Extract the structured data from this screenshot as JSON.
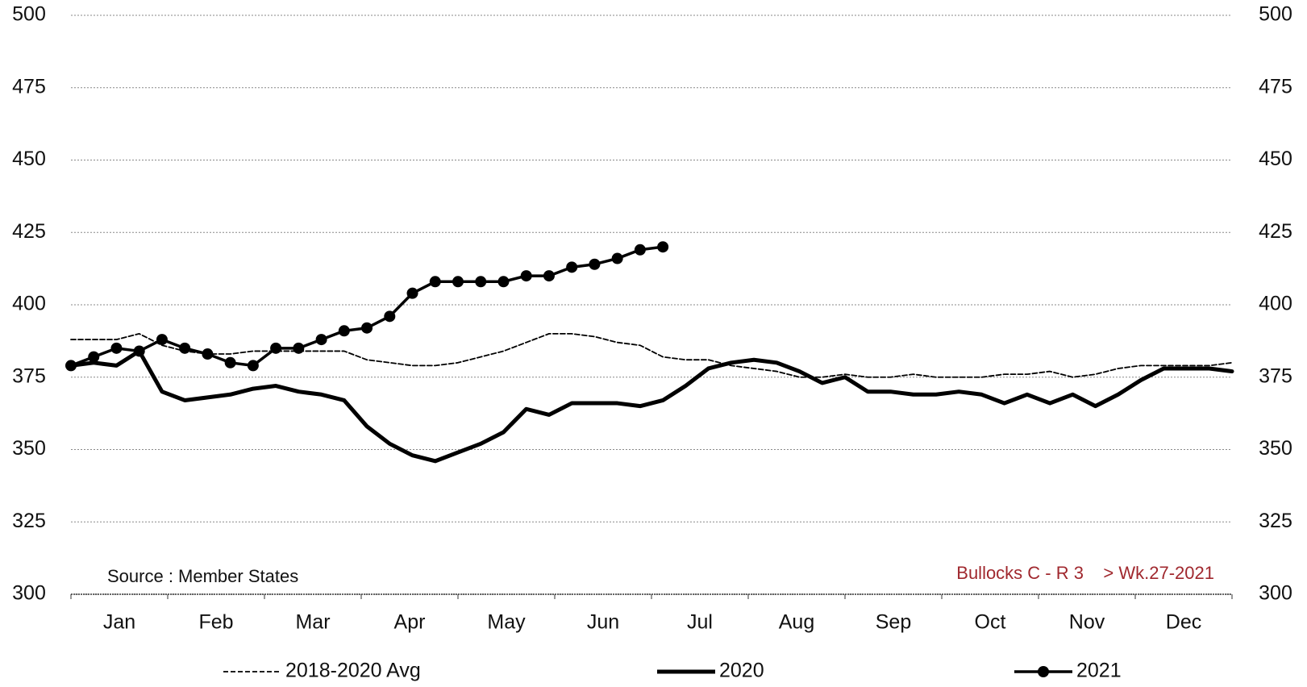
{
  "chart_data": {
    "type": "line",
    "categories": [
      "Jan",
      "Feb",
      "Mar",
      "Apr",
      "May",
      "Jun",
      "Jul",
      "Aug",
      "Sep",
      "Oct",
      "Nov",
      "Dec"
    ],
    "xlim": [
      1,
      52
    ],
    "ylim": [
      300,
      500
    ],
    "yticks": [
      300,
      325,
      350,
      375,
      400,
      425,
      450,
      475,
      500
    ],
    "y2lim": [
      300,
      500
    ],
    "y2ticks": [
      300,
      325,
      350,
      375,
      400,
      425,
      450,
      475,
      500
    ],
    "grid": true,
    "annotations": [
      "Source : Member States",
      "Bullocks C - R 3    > Wk.27-2021"
    ],
    "series": [
      {
        "name": "2018-2020 Avg",
        "color": "#000000",
        "style": "dashed",
        "x": [
          1,
          2,
          3,
          4,
          5,
          6,
          7,
          8,
          9,
          10,
          11,
          12,
          13,
          14,
          15,
          16,
          17,
          18,
          19,
          20,
          21,
          22,
          23,
          24,
          25,
          26,
          27,
          28,
          29,
          30,
          31,
          32,
          33,
          34,
          35,
          36,
          37,
          38,
          39,
          40,
          41,
          42,
          43,
          44,
          45,
          46,
          47,
          48,
          49,
          50,
          51,
          52
        ],
        "values": [
          388,
          388,
          388,
          390,
          386,
          384,
          383,
          383,
          384,
          384,
          384,
          384,
          384,
          381,
          380,
          379,
          379,
          380,
          382,
          384,
          387,
          390,
          390,
          389,
          387,
          386,
          382,
          381,
          381,
          379,
          378,
          377,
          375,
          375,
          376,
          375,
          375,
          376,
          375,
          375,
          375,
          376,
          376,
          377,
          375,
          376,
          378,
          379,
          379,
          379,
          379,
          380
        ]
      },
      {
        "name": "2020",
        "color": "#000000",
        "style": "thick",
        "x": [
          1,
          2,
          3,
          4,
          5,
          6,
          7,
          8,
          9,
          10,
          11,
          12,
          13,
          14,
          15,
          16,
          17,
          18,
          19,
          20,
          21,
          22,
          23,
          24,
          25,
          26,
          27,
          28,
          29,
          30,
          31,
          32,
          33,
          34,
          35,
          36,
          37,
          38,
          39,
          40,
          41,
          42,
          43,
          44,
          45,
          46,
          47,
          48,
          49,
          50,
          51,
          52
        ],
        "values": [
          379,
          380,
          379,
          384,
          370,
          367,
          368,
          369,
          371,
          372,
          370,
          369,
          367,
          358,
          352,
          348,
          346,
          349,
          352,
          356,
          364,
          362,
          366,
          366,
          366,
          365,
          367,
          372,
          378,
          380,
          381,
          380,
          377,
          373,
          375,
          370,
          370,
          369,
          369,
          370,
          369,
          366,
          369,
          366,
          369,
          365,
          369,
          374,
          378,
          378,
          378,
          377
        ]
      },
      {
        "name": "2021",
        "color": "#000000",
        "style": "markers",
        "x": [
          1,
          2,
          3,
          4,
          5,
          6,
          7,
          8,
          9,
          10,
          11,
          12,
          13,
          14,
          15,
          16,
          17,
          18,
          19,
          20,
          21,
          22,
          23,
          24,
          25,
          26,
          27
        ],
        "values": [
          379,
          382,
          385,
          384,
          388,
          385,
          383,
          380,
          379,
          385,
          385,
          388,
          391,
          392,
          396,
          404,
          408,
          408,
          408,
          408,
          410,
          410,
          413,
          414,
          416,
          419,
          420
        ]
      }
    ]
  }
}
